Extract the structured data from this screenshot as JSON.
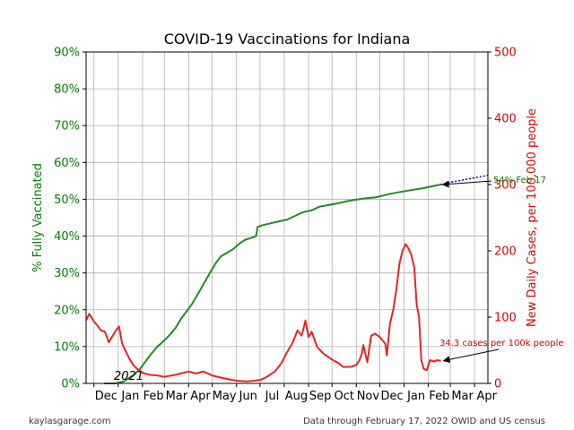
{
  "chart_data": {
    "type": "line",
    "title": "COVID-19 Vaccinations for Indiana",
    "y_left_label": "% Fully Vaccinated",
    "y_right_label": "New Daily Cases, per 100,000 people",
    "y_left_ticks": [
      "0%",
      "10%",
      "20%",
      "30%",
      "40%",
      "50%",
      "60%",
      "70%",
      "80%",
      "90%"
    ],
    "y_left_range": [
      0,
      90
    ],
    "y_right_ticks": [
      "0",
      "100",
      "200",
      "300",
      "400",
      "500"
    ],
    "y_right_range": [
      0,
      500
    ],
    "x_ticks": [
      "Dec",
      "Jan",
      "Feb",
      "Mar",
      "Apr",
      "May",
      "Jun",
      "Jul",
      "Aug",
      "Sep",
      "Oct",
      "Nov",
      "Dec",
      "Jan",
      "Feb",
      "Mar",
      "Apr"
    ],
    "x_tick_dates": [
      "2020-12-01",
      "2021-01-01",
      "2021-02-01",
      "2021-03-01",
      "2021-04-01",
      "2021-05-01",
      "2021-06-01",
      "2021-07-01",
      "2021-08-01",
      "2021-09-01",
      "2021-10-01",
      "2021-11-01",
      "2021-12-01",
      "2022-01-01",
      "2022-02-01",
      "2022-03-01",
      "2022-04-01"
    ],
    "x_range": [
      "2020-11-21",
      "2022-04-18"
    ],
    "year_label": "2021",
    "grid": true,
    "colors": {
      "vaccinated": "#228b22",
      "cases": "#ee2222",
      "projection": "#0000cc",
      "left_axis": "#008000",
      "right_axis": "#e00000"
    },
    "series": [
      {
        "axis": "left",
        "x": [
          "2020-12-14",
          "2020-12-28",
          "2021-01-08",
          "2021-01-15",
          "2021-01-22",
          "2021-01-29",
          "2021-02-05",
          "2021-02-12",
          "2021-02-20",
          "2021-02-28",
          "2021-03-07",
          "2021-03-15",
          "2021-03-22",
          "2021-03-29",
          "2021-04-05",
          "2021-04-12",
          "2021-04-20",
          "2021-04-28",
          "2021-05-05",
          "2021-05-12",
          "2021-05-20",
          "2021-05-28",
          "2021-06-05",
          "2021-06-12",
          "2021-06-20",
          "2021-06-26",
          "2021-06-28",
          "2021-07-05",
          "2021-07-15",
          "2021-07-25",
          "2021-08-05",
          "2021-08-15",
          "2021-08-25",
          "2021-09-05",
          "2021-09-15",
          "2021-09-28",
          "2021-10-10",
          "2021-10-25",
          "2021-11-10",
          "2021-11-25",
          "2021-12-05",
          "2021-12-15",
          "2021-12-28",
          "2022-01-10",
          "2022-01-25",
          "2022-02-05",
          "2022-02-17"
        ],
        "values": [
          0,
          0,
          0.5,
          1.5,
          2.5,
          4,
          6,
          8,
          10,
          11.5,
          13,
          15,
          17.5,
          19.5,
          21.5,
          24,
          27,
          30,
          32.5,
          34.5,
          35.5,
          36.5,
          38,
          39,
          39.5,
          40,
          42.5,
          43,
          43.5,
          44,
          44.5,
          45.5,
          46.5,
          47,
          48,
          48.5,
          49,
          49.7,
          50.2,
          50.5,
          51,
          51.5,
          52,
          52.5,
          53,
          53.5,
          54
        ]
      },
      {
        "axis": "right",
        "x": [
          "2020-11-21",
          "2020-11-25",
          "2020-11-30",
          "2020-12-05",
          "2020-12-10",
          "2020-12-15",
          "2020-12-20",
          "2020-12-25",
          "2020-12-29",
          "2021-01-02",
          "2021-01-06",
          "2021-01-10",
          "2021-01-15",
          "2021-01-20",
          "2021-01-25",
          "2021-02-01",
          "2021-02-10",
          "2021-02-20",
          "2021-03-01",
          "2021-03-15",
          "2021-04-01",
          "2021-04-10",
          "2021-04-20",
          "2021-05-01",
          "2021-05-15",
          "2021-06-01",
          "2021-06-15",
          "2021-07-01",
          "2021-07-10",
          "2021-07-20",
          "2021-07-28",
          "2021-08-05",
          "2021-08-12",
          "2021-08-18",
          "2021-08-23",
          "2021-08-26",
          "2021-08-28",
          "2021-09-01",
          "2021-09-05",
          "2021-09-12",
          "2021-09-20",
          "2021-10-01",
          "2021-10-10",
          "2021-10-15",
          "2021-10-25",
          "2021-11-01",
          "2021-11-05",
          "2021-11-08",
          "2021-11-10",
          "2021-11-15",
          "2021-11-20",
          "2021-11-25",
          "2021-12-01",
          "2021-12-05",
          "2021-12-08",
          "2021-12-10",
          "2021-12-14",
          "2021-12-18",
          "2021-12-22",
          "2021-12-26",
          "2021-12-30",
          "2022-01-03",
          "2022-01-06",
          "2022-01-10",
          "2022-01-14",
          "2022-01-17",
          "2022-01-20",
          "2022-01-23",
          "2022-01-26",
          "2022-01-30",
          "2022-02-03",
          "2022-02-08",
          "2022-02-12",
          "2022-02-17"
        ],
        "values": [
          95,
          105,
          95,
          88,
          80,
          78,
          62,
          72,
          80,
          86,
          60,
          50,
          38,
          28,
          22,
          16,
          13,
          12,
          10,
          13,
          18,
          15,
          18,
          12,
          8,
          4,
          3,
          5,
          10,
          18,
          30,
          48,
          62,
          80,
          72,
          85,
          95,
          70,
          78,
          55,
          45,
          36,
          30,
          25,
          25,
          28,
          35,
          45,
          58,
          32,
          72,
          75,
          70,
          64,
          60,
          42,
          90,
          110,
          140,
          180,
          200,
          210,
          205,
          195,
          175,
          120,
          100,
          35,
          22,
          20,
          35,
          33,
          35,
          34.3
        ]
      },
      {
        "axis": "left",
        "style": "dotted",
        "x": [
          "2022-02-17",
          "2022-03-01",
          "2022-04-18"
        ],
        "values": [
          54,
          54.6,
          56.5
        ]
      }
    ],
    "annotations": [
      {
        "text": "54% Feb 17",
        "color": "#008000"
      },
      {
        "text": "34.3 cases per 100k people",
        "color": "#e00000"
      }
    ],
    "footer_left": "kaylasgarage.com",
    "footer_right": "Data through February 17, 2022 OWID and US census"
  }
}
